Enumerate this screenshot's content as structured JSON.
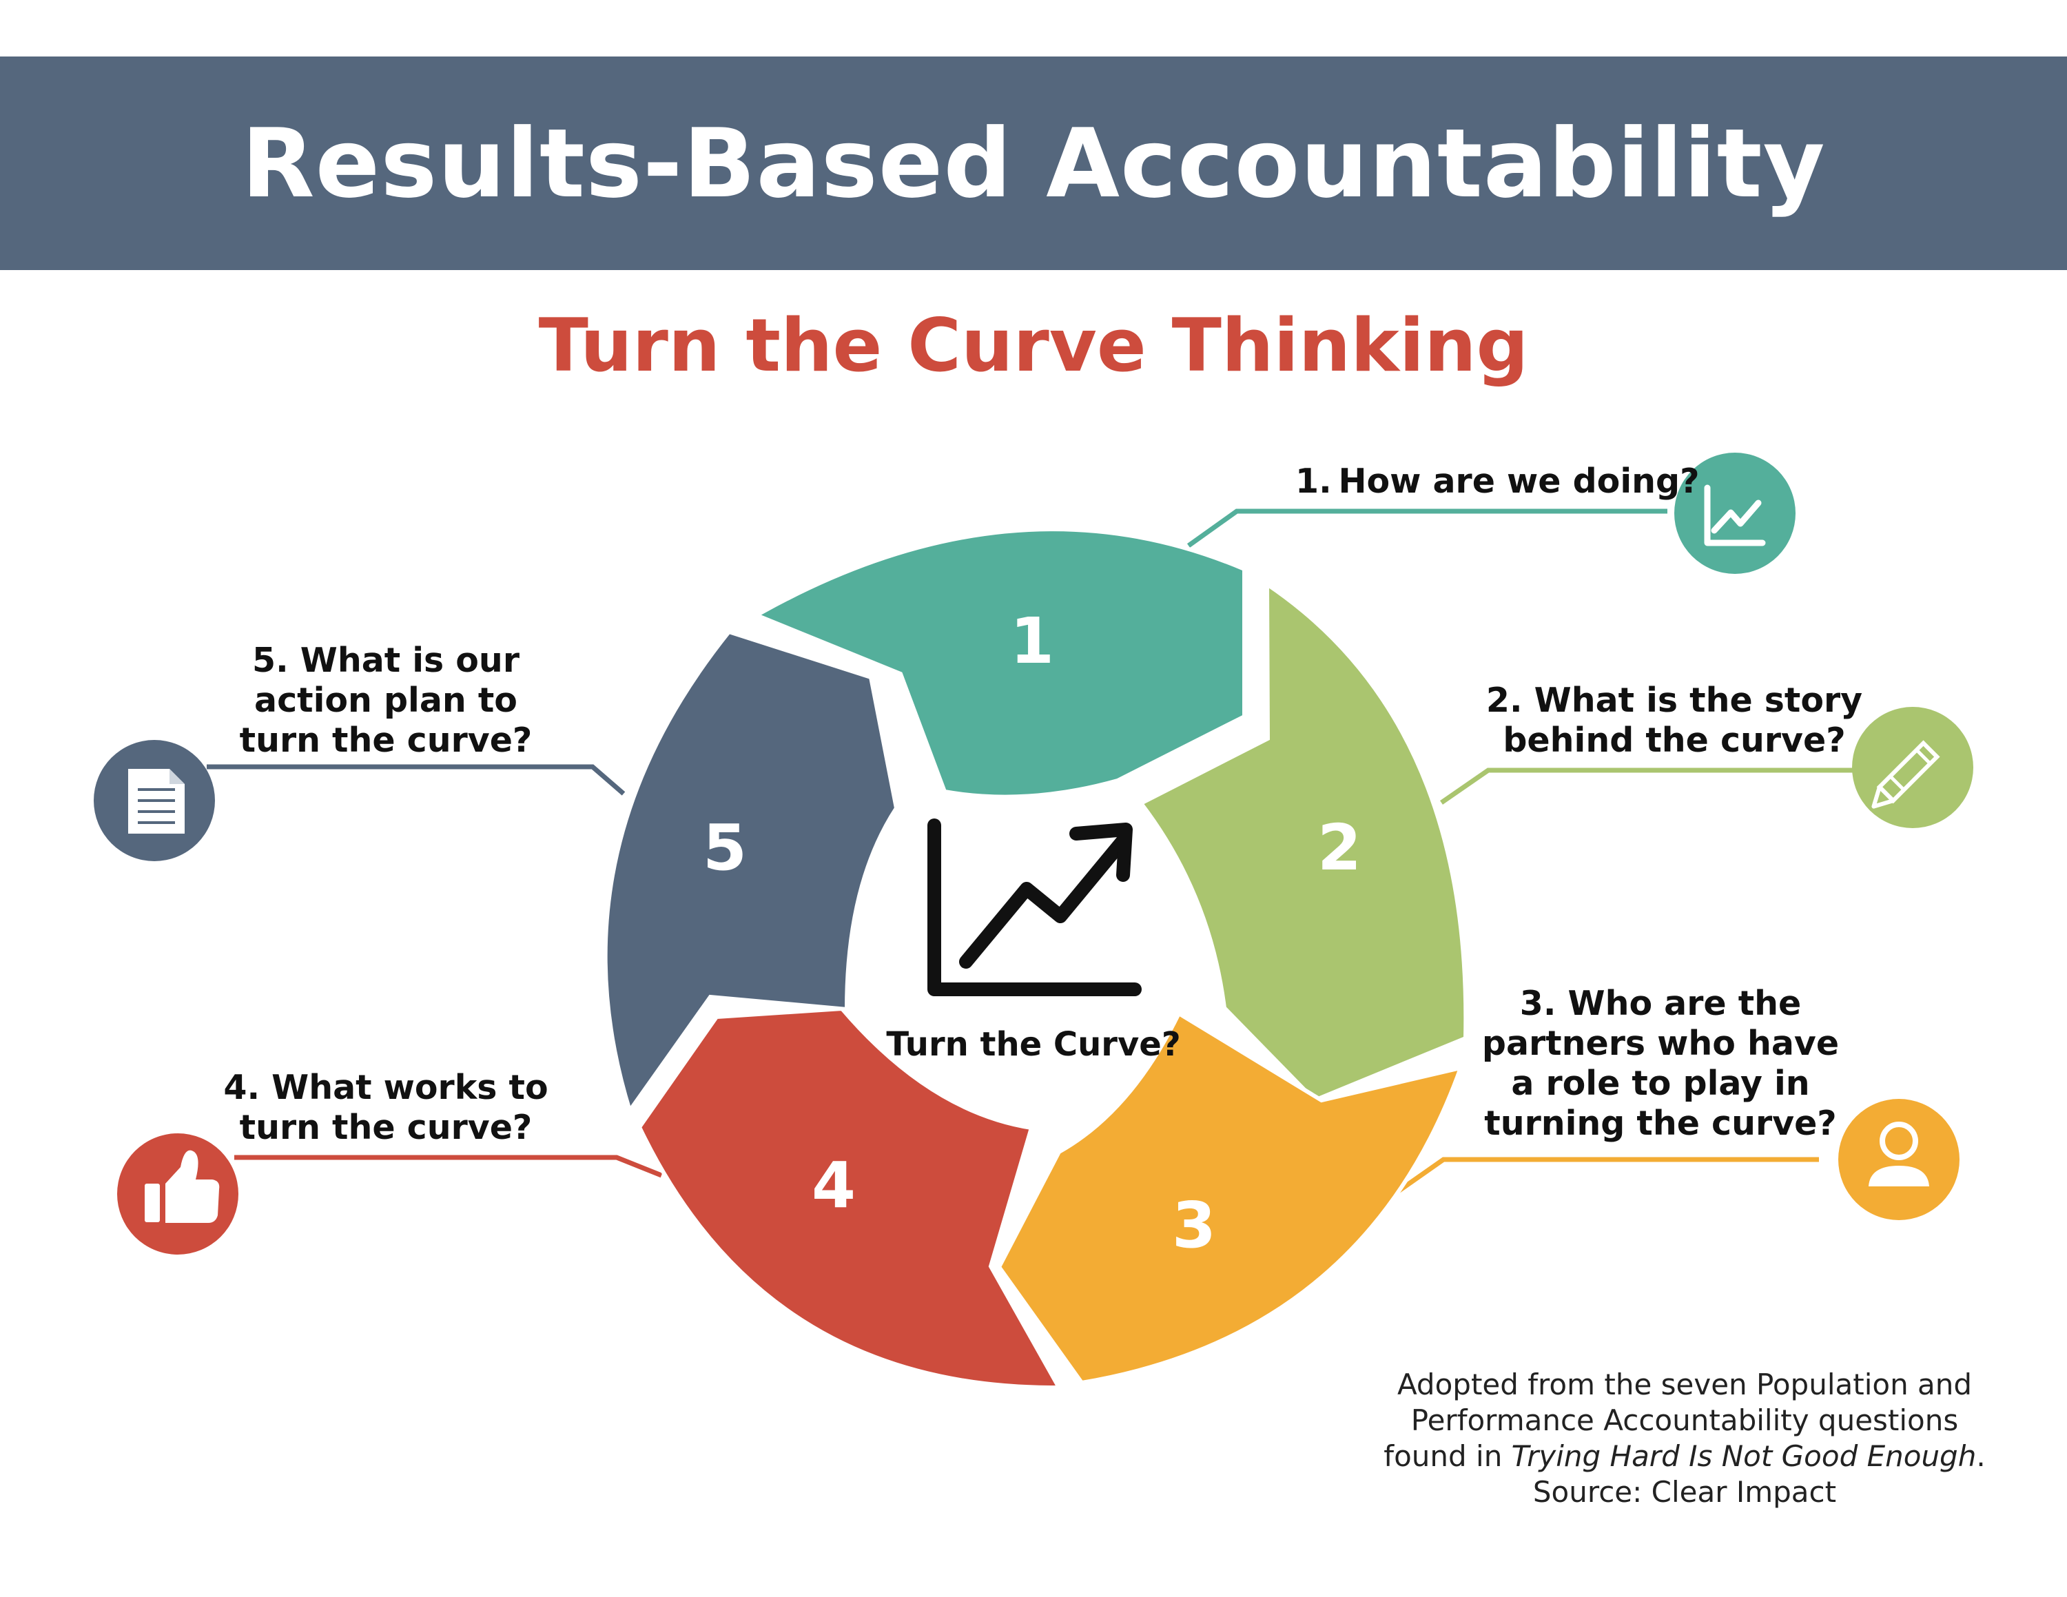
{
  "header": {
    "title": "Results-Based Accountability"
  },
  "subtitle": "Turn the Curve Thinking",
  "center": {
    "label": "Turn the Curve?",
    "icon": "trending-up-chart-icon"
  },
  "steps": [
    {
      "number": "1",
      "question": "1. How are we doing?",
      "color": "#54af9b",
      "icon": "line-chart-icon"
    },
    {
      "number": "2",
      "question_lines": [
        "2. What is the story",
        "behind the curve?"
      ],
      "color": "#aac56f",
      "icon": "pencil-icon"
    },
    {
      "number": "3",
      "question_lines": [
        "3. Who are the",
        "partners who have",
        "a role to play in",
        "turning the curve?"
      ],
      "color": "#f3ac34",
      "icon": "person-icon"
    },
    {
      "number": "4",
      "question_lines": [
        "4. What works to",
        "turn the curve?"
      ],
      "color": "#cd4c3d",
      "icon": "thumbs-up-icon"
    },
    {
      "number": "5",
      "question_lines": [
        "5. What is our",
        "action plan to",
        "turn the curve?"
      ],
      "color": "#55677d",
      "icon": "document-icon"
    }
  ],
  "footnote": {
    "line1": "Adopted from the seven Population and",
    "line2": "Performance Accountability questions",
    "line3_prefix": "found in ",
    "line3_title": "Trying Hard Is Not Good Enough",
    "line3_suffix": ".",
    "line4": "Source: Clear Impact"
  }
}
